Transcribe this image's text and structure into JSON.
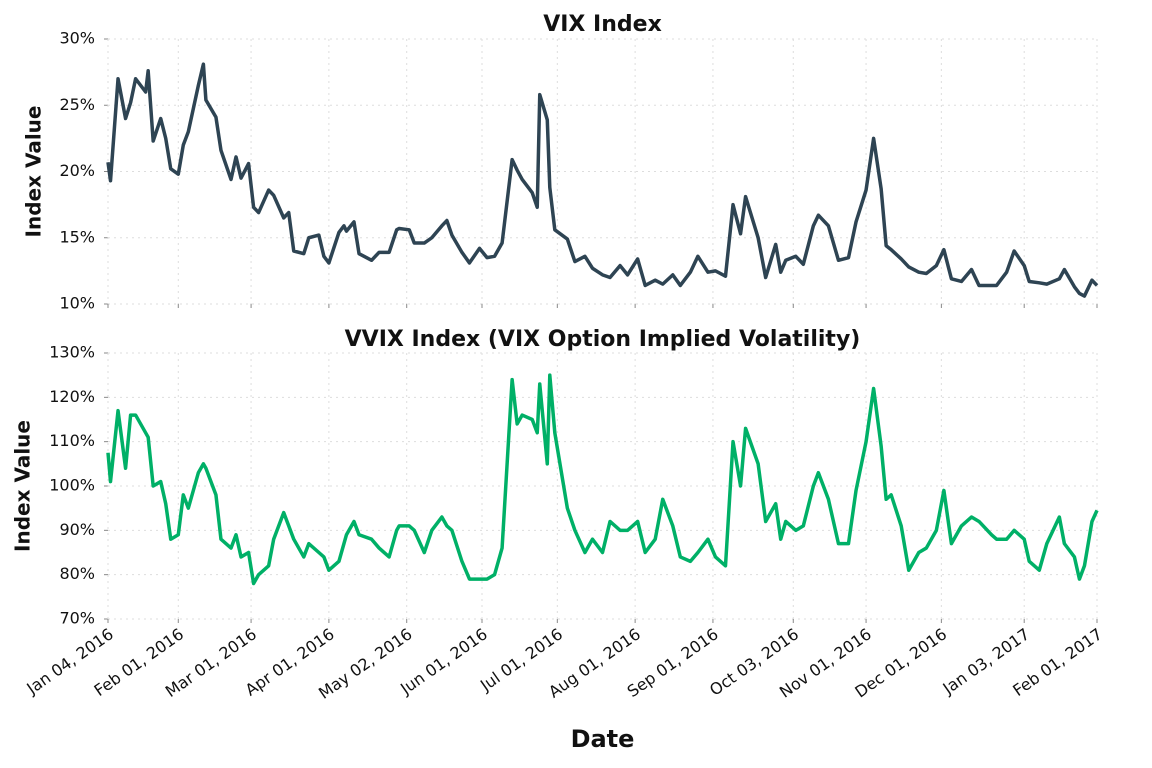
{
  "chart_data": [
    {
      "type": "line",
      "title": "VIX Index",
      "y_label": "Index Value",
      "x": [
        "2016-01-04",
        "2016-01-05",
        "2016-01-08",
        "2016-01-11",
        "2016-01-13",
        "2016-01-15",
        "2016-01-19",
        "2016-01-20",
        "2016-01-22",
        "2016-01-25",
        "2016-01-27",
        "2016-01-29",
        "2016-02-01",
        "2016-02-03",
        "2016-02-05",
        "2016-02-09",
        "2016-02-11",
        "2016-02-12",
        "2016-02-16",
        "2016-02-18",
        "2016-02-22",
        "2016-02-24",
        "2016-02-26",
        "2016-02-29",
        "2016-03-02",
        "2016-03-04",
        "2016-03-08",
        "2016-03-10",
        "2016-03-14",
        "2016-03-16",
        "2016-03-18",
        "2016-03-22",
        "2016-03-24",
        "2016-03-28",
        "2016-03-30",
        "2016-04-01",
        "2016-04-05",
        "2016-04-07",
        "2016-04-08",
        "2016-04-11",
        "2016-04-13",
        "2016-04-18",
        "2016-04-21",
        "2016-04-25",
        "2016-04-28",
        "2016-04-29",
        "2016-05-03",
        "2016-05-05",
        "2016-05-09",
        "2016-05-12",
        "2016-05-16",
        "2016-05-18",
        "2016-05-20",
        "2016-05-24",
        "2016-05-27",
        "2016-05-31",
        "2016-06-03",
        "2016-06-06",
        "2016-06-09",
        "2016-06-13",
        "2016-06-15",
        "2016-06-17",
        "2016-06-21",
        "2016-06-23",
        "2016-06-24",
        "2016-06-27",
        "2016-06-28",
        "2016-06-30",
        "2016-07-05",
        "2016-07-08",
        "2016-07-12",
        "2016-07-15",
        "2016-07-19",
        "2016-07-22",
        "2016-07-26",
        "2016-07-29",
        "2016-08-02",
        "2016-08-05",
        "2016-08-09",
        "2016-08-12",
        "2016-08-16",
        "2016-08-19",
        "2016-08-23",
        "2016-08-26",
        "2016-08-30",
        "2016-09-02",
        "2016-09-06",
        "2016-09-09",
        "2016-09-12",
        "2016-09-14",
        "2016-09-19",
        "2016-09-22",
        "2016-09-26",
        "2016-09-28",
        "2016-09-30",
        "2016-10-04",
        "2016-10-07",
        "2016-10-11",
        "2016-10-13",
        "2016-10-17",
        "2016-10-21",
        "2016-10-25",
        "2016-10-28",
        "2016-11-01",
        "2016-11-04",
        "2016-11-07",
        "2016-11-09",
        "2016-11-11",
        "2016-11-15",
        "2016-11-18",
        "2016-11-22",
        "2016-11-25",
        "2016-11-29",
        "2016-12-02",
        "2016-12-05",
        "2016-12-09",
        "2016-12-13",
        "2016-12-16",
        "2016-12-21",
        "2016-12-23",
        "2016-12-27",
        "2016-12-30",
        "2017-01-03",
        "2017-01-05",
        "2017-01-09",
        "2017-01-12",
        "2017-01-17",
        "2017-01-19",
        "2017-01-23",
        "2017-01-25",
        "2017-01-27",
        "2017-01-30",
        "2017-02-01"
      ],
      "series": [
        {
          "name": "VIX",
          "color": "#2e4453",
          "values": [
            20.7,
            19.3,
            27.0,
            24.0,
            25.2,
            27.0,
            26.0,
            27.6,
            22.3,
            24.0,
            22.5,
            20.2,
            19.8,
            22.0,
            23.0,
            26.5,
            28.1,
            25.4,
            24.1,
            21.6,
            19.4,
            21.1,
            19.5,
            20.6,
            17.3,
            16.9,
            18.6,
            18.2,
            16.5,
            16.9,
            14.0,
            13.8,
            15.0,
            15.2,
            13.6,
            13.1,
            15.4,
            15.9,
            15.5,
            16.2,
            13.8,
            13.3,
            13.9,
            13.9,
            15.6,
            15.7,
            15.6,
            14.6,
            14.6,
            15.0,
            15.9,
            16.3,
            15.2,
            13.9,
            13.1,
            14.2,
            13.5,
            13.6,
            14.6,
            20.9,
            20.1,
            19.4,
            18.4,
            17.3,
            25.8,
            23.9,
            18.8,
            15.6,
            14.9,
            13.2,
            13.6,
            12.7,
            12.2,
            12.0,
            12.9,
            12.2,
            13.4,
            11.4,
            11.8,
            11.5,
            12.2,
            11.4,
            12.4,
            13.6,
            12.4,
            12.5,
            12.1,
            17.5,
            15.3,
            18.1,
            15.0,
            12.0,
            14.5,
            12.4,
            13.3,
            13.6,
            13.0,
            15.9,
            16.7,
            15.9,
            13.3,
            13.5,
            16.2,
            18.6,
            22.5,
            18.7,
            14.4,
            14.1,
            13.4,
            12.8,
            12.4,
            12.3,
            12.9,
            14.1,
            11.9,
            11.7,
            12.6,
            11.4,
            11.4,
            11.4,
            12.4,
            14.0,
            12.9,
            11.7,
            11.6,
            11.5,
            11.9,
            12.6,
            11.3,
            10.8,
            10.6,
            11.8,
            11.4
          ]
        }
      ],
      "xlim": [
        "2016-01-04",
        "2017-02-01"
      ],
      "xticks": [
        "2016-01-04",
        "2016-02-01",
        "2016-03-01",
        "2016-04-01",
        "2016-05-02",
        "2016-06-01",
        "2016-07-01",
        "2016-08-01",
        "2016-09-01",
        "2016-10-03",
        "2016-11-01",
        "2016-12-01",
        "2017-01-03",
        "2017-02-01"
      ],
      "ylim": [
        10,
        30
      ],
      "yticks": [
        {
          "value": 10,
          "label": "10%"
        },
        {
          "value": 15,
          "label": "15%"
        },
        {
          "value": 20,
          "label": "20%"
        },
        {
          "value": 25,
          "label": "25%"
        },
        {
          "value": 30,
          "label": "30%"
        }
      ],
      "grid": true
    },
    {
      "type": "line",
      "title": "VVIX Index (VIX Option Implied Volatility)",
      "y_label": "Index Value",
      "x_label": "Date",
      "x": [
        "2016-01-04",
        "2016-01-05",
        "2016-01-08",
        "2016-01-11",
        "2016-01-13",
        "2016-01-15",
        "2016-01-19",
        "2016-01-20",
        "2016-01-22",
        "2016-01-25",
        "2016-01-27",
        "2016-01-29",
        "2016-02-01",
        "2016-02-03",
        "2016-02-05",
        "2016-02-09",
        "2016-02-11",
        "2016-02-12",
        "2016-02-16",
        "2016-02-18",
        "2016-02-22",
        "2016-02-24",
        "2016-02-26",
        "2016-02-29",
        "2016-03-02",
        "2016-03-04",
        "2016-03-08",
        "2016-03-10",
        "2016-03-14",
        "2016-03-16",
        "2016-03-18",
        "2016-03-22",
        "2016-03-24",
        "2016-03-28",
        "2016-03-30",
        "2016-04-01",
        "2016-04-05",
        "2016-04-07",
        "2016-04-08",
        "2016-04-11",
        "2016-04-13",
        "2016-04-18",
        "2016-04-21",
        "2016-04-25",
        "2016-04-28",
        "2016-04-29",
        "2016-05-03",
        "2016-05-05",
        "2016-05-09",
        "2016-05-12",
        "2016-05-16",
        "2016-05-18",
        "2016-05-20",
        "2016-05-24",
        "2016-05-27",
        "2016-05-31",
        "2016-06-03",
        "2016-06-06",
        "2016-06-09",
        "2016-06-13",
        "2016-06-15",
        "2016-06-17",
        "2016-06-21",
        "2016-06-23",
        "2016-06-24",
        "2016-06-27",
        "2016-06-28",
        "2016-06-30",
        "2016-07-05",
        "2016-07-08",
        "2016-07-12",
        "2016-07-15",
        "2016-07-19",
        "2016-07-22",
        "2016-07-26",
        "2016-07-29",
        "2016-08-02",
        "2016-08-05",
        "2016-08-09",
        "2016-08-12",
        "2016-08-16",
        "2016-08-19",
        "2016-08-23",
        "2016-08-26",
        "2016-08-30",
        "2016-09-02",
        "2016-09-06",
        "2016-09-09",
        "2016-09-12",
        "2016-09-14",
        "2016-09-19",
        "2016-09-22",
        "2016-09-26",
        "2016-09-28",
        "2016-09-30",
        "2016-10-04",
        "2016-10-07",
        "2016-10-11",
        "2016-10-13",
        "2016-10-17",
        "2016-10-21",
        "2016-10-25",
        "2016-10-28",
        "2016-11-01",
        "2016-11-04",
        "2016-11-07",
        "2016-11-09",
        "2016-11-11",
        "2016-11-15",
        "2016-11-18",
        "2016-11-22",
        "2016-11-25",
        "2016-11-29",
        "2016-12-02",
        "2016-12-05",
        "2016-12-09",
        "2016-12-13",
        "2016-12-16",
        "2016-12-21",
        "2016-12-23",
        "2016-12-27",
        "2016-12-30",
        "2017-01-03",
        "2017-01-05",
        "2017-01-09",
        "2017-01-12",
        "2017-01-17",
        "2017-01-19",
        "2017-01-23",
        "2017-01-25",
        "2017-01-27",
        "2017-01-30",
        "2017-02-01"
      ],
      "series": [
        {
          "name": "VVIX",
          "color": "#00b067",
          "values": [
            107.5,
            101,
            117,
            104,
            116,
            116,
            112,
            111,
            100,
            101,
            96,
            88,
            89,
            98,
            95,
            103,
            105,
            104,
            98,
            88,
            86,
            89,
            84,
            85,
            78,
            80,
            82,
            88,
            94,
            91,
            88,
            84,
            87,
            85,
            84,
            81,
            83,
            87,
            89,
            92,
            89,
            88,
            86,
            84,
            90,
            91,
            91,
            90,
            85,
            90,
            93,
            91,
            90,
            83,
            79,
            79,
            79,
            80,
            86,
            124,
            114,
            116,
            115,
            112,
            123,
            105,
            125,
            112,
            95,
            90,
            85,
            88,
            85,
            92,
            90,
            90,
            92,
            85,
            88,
            97,
            91,
            84,
            83,
            85,
            88,
            84,
            82,
            110,
            100,
            113,
            105,
            92,
            96,
            88,
            92,
            90,
            91,
            100,
            103,
            97,
            87,
            87,
            99,
            110,
            122,
            109,
            97,
            98,
            91,
            81,
            85,
            86,
            90,
            99,
            87,
            91,
            93,
            92,
            89,
            88,
            88,
            90,
            88,
            83,
            81,
            87,
            93,
            87,
            84,
            79,
            82,
            92,
            94.5
          ]
        }
      ],
      "xlim": [
        "2016-01-04",
        "2017-02-01"
      ],
      "xticks": [
        {
          "value": "2016-01-04",
          "label": "Jan 04, 2016"
        },
        {
          "value": "2016-02-01",
          "label": "Feb 01, 2016"
        },
        {
          "value": "2016-03-01",
          "label": "Mar 01, 2016"
        },
        {
          "value": "2016-04-01",
          "label": "Apr 01, 2016"
        },
        {
          "value": "2016-05-02",
          "label": "May 02, 2016"
        },
        {
          "value": "2016-06-01",
          "label": "Jun 01, 2016"
        },
        {
          "value": "2016-07-01",
          "label": "Jul 01, 2016"
        },
        {
          "value": "2016-08-01",
          "label": "Aug 01, 2016"
        },
        {
          "value": "2016-09-01",
          "label": "Sep 01, 2016"
        },
        {
          "value": "2016-10-03",
          "label": "Oct 03, 2016"
        },
        {
          "value": "2016-11-01",
          "label": "Nov 01, 2016"
        },
        {
          "value": "2016-12-01",
          "label": "Dec 01, 2016"
        },
        {
          "value": "2017-01-03",
          "label": "Jan 03, 2017"
        },
        {
          "value": "2017-02-01",
          "label": "Feb 01, 2017"
        }
      ],
      "ylim": [
        70,
        130
      ],
      "yticks": [
        {
          "value": 70,
          "label": "70%"
        },
        {
          "value": 80,
          "label": "80%"
        },
        {
          "value": 90,
          "label": "90%"
        },
        {
          "value": 100,
          "label": "100%"
        },
        {
          "value": 110,
          "label": "110%"
        },
        {
          "value": 120,
          "label": "120%"
        },
        {
          "value": 130,
          "label": "130%"
        }
      ],
      "grid": true
    }
  ]
}
